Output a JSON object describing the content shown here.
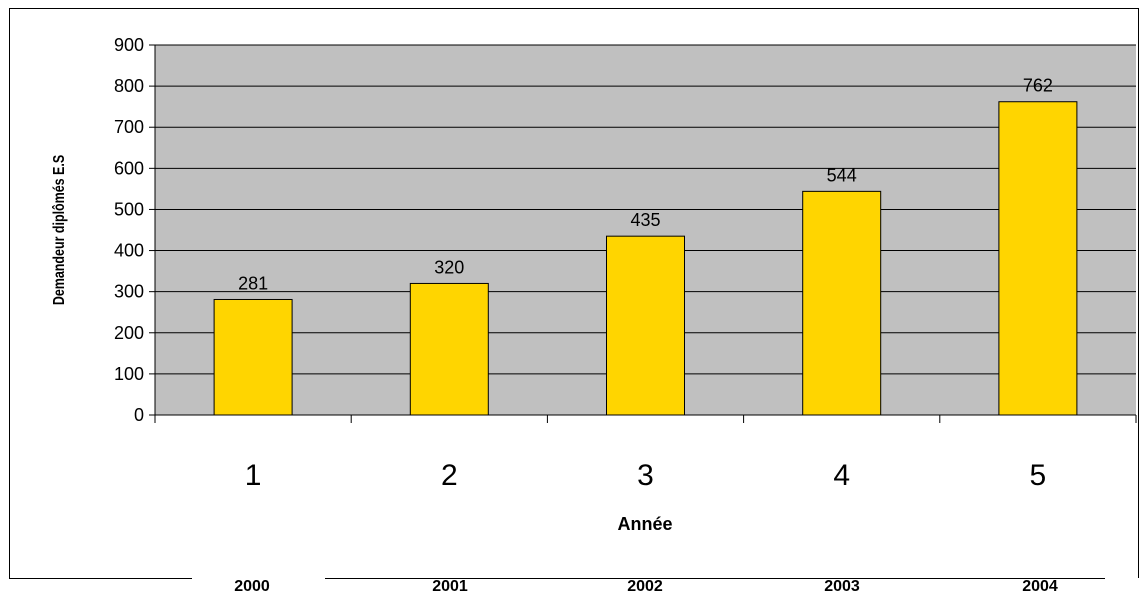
{
  "chart_data": {
    "type": "bar",
    "title": "",
    "xlabel": "Année",
    "ylabel": "Demandeur diplômés E.S",
    "categories": [
      "1",
      "2",
      "3",
      "4",
      "5"
    ],
    "values": [
      281,
      320,
      435,
      544,
      762
    ],
    "data_labels": [
      "281",
      "320",
      "435",
      "544",
      "762"
    ],
    "ylim": [
      0,
      900
    ],
    "yticks": [
      "0",
      "100",
      "200",
      "300",
      "400",
      "500",
      "600",
      "700",
      "800",
      "900"
    ],
    "grid": true,
    "legend": "none",
    "bar_color": "#FFD500",
    "bar_border_color": "#000000",
    "plot_background": "#C0C0C0",
    "year_labels": [
      "2000",
      "2001",
      "2002",
      "2003",
      "2004"
    ]
  }
}
